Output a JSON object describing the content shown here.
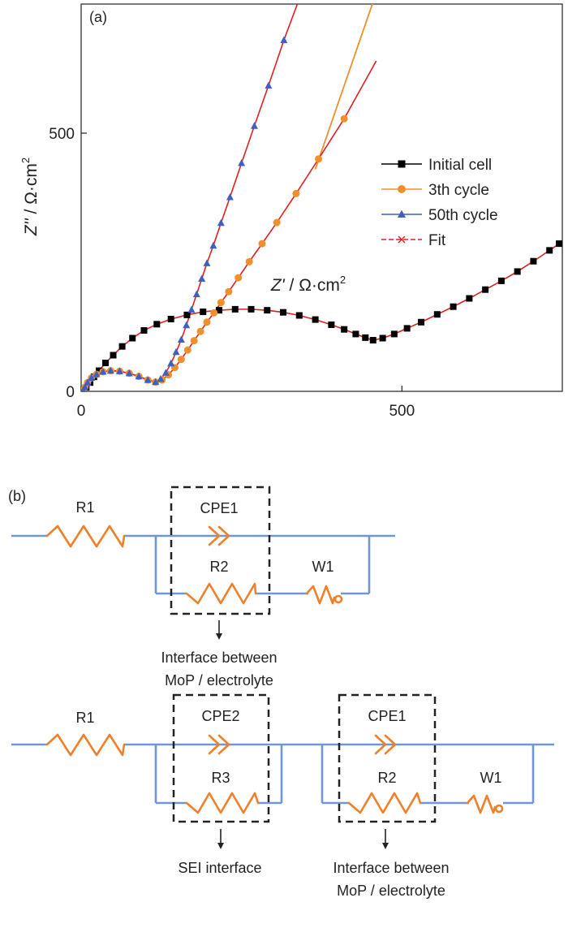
{
  "colors": {
    "initial": "#000000",
    "third": "#f0902a",
    "fiftieth": "#4060c0",
    "fit": "#e02020",
    "wire": "#7097d2",
    "component": "#f0802a",
    "box": "#222222",
    "text": "#222222"
  },
  "chart_data": {
    "type": "scatter",
    "panel_label": "(a)",
    "xlabel_italic": "Z'",
    "xlabel_unit": " / Ω·cm",
    "ylabel_italic": "Z''",
    "ylabel_unit": " / Ω·cm",
    "unit_superscript": "2",
    "xlim": [
      0,
      750
    ],
    "ylim": [
      0,
      750
    ],
    "x_ticks": [
      {
        "value": 0,
        "label": "0"
      },
      {
        "value": 500,
        "label": "500"
      }
    ],
    "y_ticks": [
      {
        "value": 0,
        "label": "0"
      },
      {
        "value": 500,
        "label": "500"
      }
    ],
    "legend_position": "right",
    "series": [
      {
        "name": "Initial cell",
        "marker": "square",
        "color_key": "initial",
        "x": [
          4,
          8,
          14,
          20,
          28,
          38,
          50,
          64,
          80,
          98,
          118,
          140,
          165,
          190,
          215,
          240,
          265,
          290,
          315,
          340,
          365,
          390,
          410,
          428,
          443,
          455,
          470,
          488,
          508,
          530,
          555,
          580,
          605,
          630,
          655,
          680,
          705,
          730,
          745
        ],
        "y": [
          2,
          8,
          17,
          28,
          40,
          55,
          70,
          87,
          103,
          118,
          130,
          140,
          148,
          154,
          157,
          159,
          159,
          157,
          153,
          147,
          139,
          129,
          120,
          111,
          104,
          99,
          103,
          111,
          122,
          134,
          149,
          164,
          180,
          197,
          214,
          232,
          252,
          273,
          286
        ]
      },
      {
        "name": "3th cycle",
        "marker": "circle",
        "color_key": "third",
        "x": [
          3,
          6,
          10,
          16,
          24,
          34,
          46,
          60,
          75,
          90,
          104,
          116,
          126,
          136,
          146,
          156,
          166,
          176,
          186,
          196,
          207,
          218,
          230,
          245,
          262,
          282,
          305,
          335,
          370,
          410
        ],
        "y": [
          2,
          8,
          17,
          26,
          33,
          38,
          40,
          39,
          35,
          29,
          22,
          18,
          22,
          32,
          46,
          62,
          80,
          98,
          116,
          134,
          152,
          172,
          193,
          220,
          251,
          286,
          327,
          383,
          450,
          528
        ]
      },
      {
        "name": "50th cycle",
        "marker": "triangle",
        "color_key": "fiftieth",
        "x": [
          3,
          6,
          10,
          16,
          24,
          34,
          46,
          60,
          75,
          90,
          104,
          116,
          124,
          132,
          140,
          148,
          156,
          164,
          172,
          180,
          188,
          196,
          206,
          218,
          232,
          250,
          270,
          292,
          316
        ],
        "y": [
          2,
          8,
          17,
          26,
          33,
          38,
          40,
          39,
          35,
          29,
          22,
          18,
          24,
          36,
          54,
          76,
          100,
          128,
          158,
          188,
          218,
          248,
          282,
          326,
          376,
          442,
          514,
          592,
          680
        ]
      },
      {
        "name": "Fit",
        "marker": "x",
        "color_key": "fit",
        "x": [],
        "y": []
      }
    ],
    "fit_curves": [
      {
        "x": [
          0,
          4,
          8,
          14,
          20,
          28,
          38,
          50,
          64,
          80,
          98,
          118,
          140,
          165,
          190,
          215,
          240,
          265,
          290,
          315,
          340,
          365,
          390,
          410,
          428,
          443,
          455,
          470,
          488,
          508,
          530,
          555,
          580,
          605,
          630,
          655,
          680,
          705,
          730,
          750
        ],
        "y": [
          0,
          2,
          8,
          17,
          28,
          40,
          55,
          70,
          87,
          103,
          118,
          130,
          140,
          148,
          154,
          157,
          159,
          159,
          157,
          153,
          147,
          139,
          129,
          120,
          111,
          104,
          99,
          103,
          111,
          122,
          134,
          149,
          164,
          180,
          197,
          214,
          232,
          252,
          273,
          290
        ]
      },
      {
        "x": [
          0,
          3,
          6,
          10,
          16,
          24,
          34,
          46,
          60,
          75,
          90,
          104,
          116,
          126,
          136,
          146,
          156,
          166,
          176,
          186,
          196,
          207,
          218,
          230,
          245,
          262,
          282,
          305,
          335,
          370,
          410,
          460
        ],
        "y": [
          0,
          2,
          8,
          17,
          26,
          33,
          38,
          40,
          39,
          35,
          29,
          22,
          18,
          22,
          32,
          46,
          62,
          80,
          98,
          116,
          134,
          152,
          172,
          193,
          220,
          251,
          286,
          327,
          383,
          450,
          528,
          640
        ]
      },
      {
        "x": [
          0,
          3,
          6,
          10,
          16,
          24,
          34,
          46,
          60,
          75,
          90,
          104,
          116,
          124,
          132,
          140,
          148,
          156,
          164,
          172,
          180,
          188,
          196,
          206,
          218,
          232,
          250,
          270,
          292,
          316,
          340
        ],
        "y": [
          0,
          2,
          8,
          17,
          26,
          33,
          38,
          40,
          39,
          35,
          29,
          22,
          18,
          24,
          36,
          54,
          76,
          100,
          128,
          158,
          188,
          218,
          248,
          282,
          326,
          376,
          442,
          514,
          592,
          680,
          760
        ]
      }
    ],
    "extra_lines": [
      {
        "x": [
          365,
          465
        ],
        "y": [
          430,
          790
        ],
        "color_key": "third"
      }
    ]
  },
  "diagram_b": {
    "panel_label": "(b)",
    "circuit_top": {
      "r1": "R1",
      "cpe1": "CPE1",
      "r2": "R2",
      "w1": "W1",
      "caption_line1": "Interface between",
      "caption_line2": "MoP / electrolyte"
    },
    "circuit_bottom": {
      "r1": "R1",
      "cpe2": "CPE2",
      "r3": "R3",
      "cpe1": "CPE1",
      "r2": "R2",
      "w1": "W1",
      "sei_caption": "SEI interface",
      "caption_line1": "Interface between",
      "caption_line2": "MoP / electrolyte"
    }
  }
}
